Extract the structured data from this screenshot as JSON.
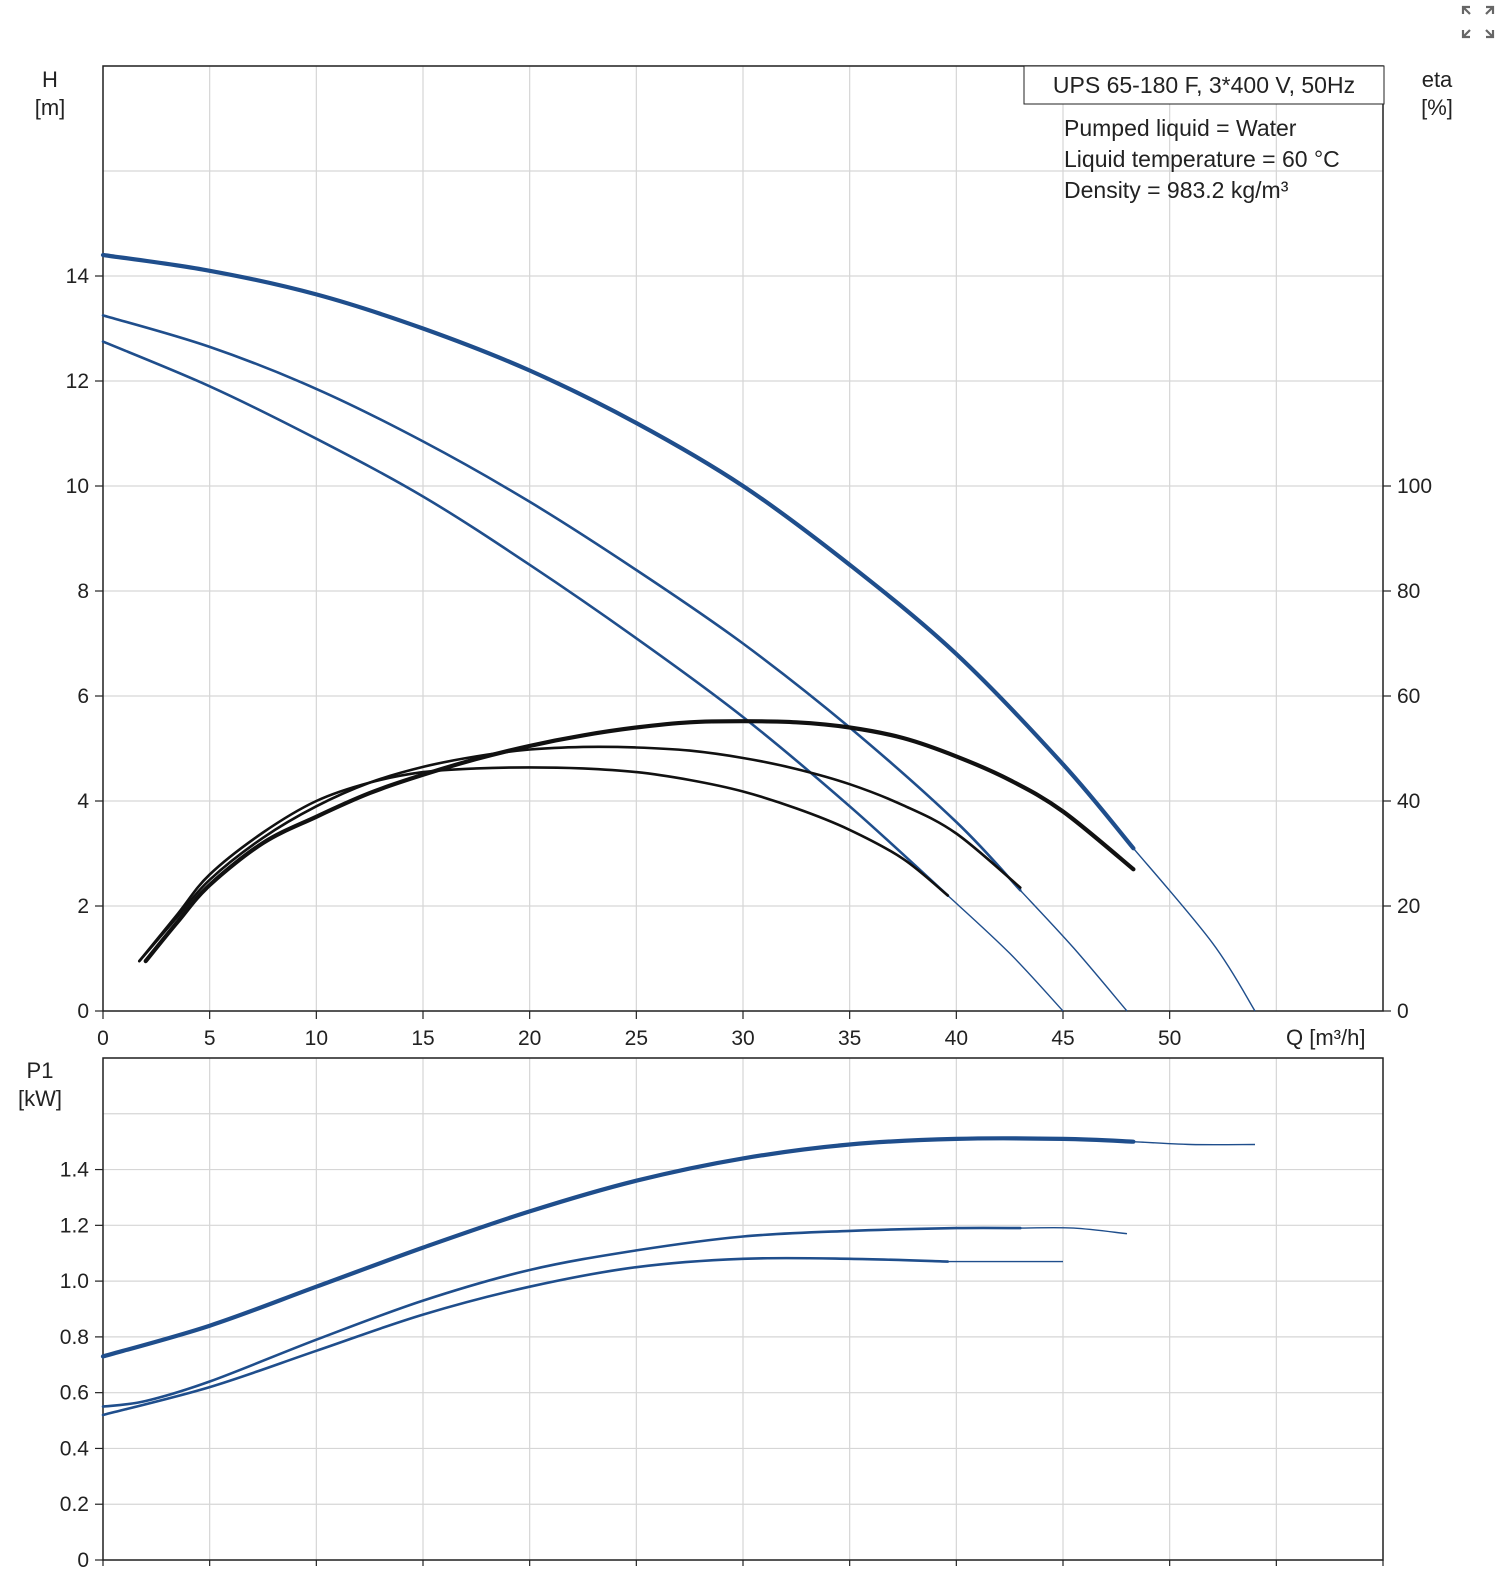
{
  "expand_button": {
    "icon": "expand-icon"
  },
  "chart_data": [
    {
      "type": "line",
      "title": "UPS 65-180 F, 3*400 V, 50Hz",
      "info": [
        "Pumped liquid = Water",
        "Liquid temperature = 60 °C",
        "Density = 983.2 kg/m³"
      ],
      "xlabel": "Q [m³/h]",
      "ylabel": "H",
      "ylabel_unit": "[m]",
      "y2label": "eta",
      "y2label_unit": "[%]",
      "xlim": [
        0,
        60
      ],
      "ylim": [
        0,
        18
      ],
      "y2lim": [
        0,
        180
      ],
      "xticks": [
        "0",
        "5",
        "10",
        "15",
        "20",
        "25",
        "30",
        "35",
        "40",
        "45",
        "50"
      ],
      "yticks": [
        "0",
        "2",
        "4",
        "6",
        "8",
        "10",
        "12",
        "14"
      ],
      "y2ticks": [
        "0",
        "20",
        "40",
        "60",
        "80",
        "100"
      ],
      "grid": true,
      "colors": {
        "head": "#1f4e8c",
        "efficiency": "#111111"
      },
      "series": [
        {
          "kind": "head",
          "axis": "left",
          "heavy": true,
          "x": [
            0,
            5,
            10,
            15,
            20,
            25,
            30,
            35,
            40,
            45,
            48.3
          ],
          "y": [
            14.4,
            14.1,
            13.65,
            13.0,
            12.2,
            11.2,
            10.0,
            8.5,
            6.8,
            4.7,
            3.1
          ],
          "ext_x": [
            48.3,
            52,
            54
          ],
          "ext_y": [
            3.1,
            1.3,
            0
          ]
        },
        {
          "kind": "head",
          "axis": "left",
          "heavy": false,
          "x": [
            0,
            5,
            10,
            15,
            20,
            25,
            30,
            35,
            40,
            43
          ],
          "y": [
            13.25,
            12.65,
            11.85,
            10.85,
            9.7,
            8.4,
            7.0,
            5.4,
            3.6,
            2.3
          ],
          "ext_x": [
            43,
            45.5,
            48
          ],
          "ext_y": [
            2.3,
            1.2,
            0
          ]
        },
        {
          "kind": "head",
          "axis": "left",
          "heavy": false,
          "x": [
            0,
            5,
            10,
            15,
            20,
            25,
            30,
            35,
            39.6
          ],
          "y": [
            12.75,
            11.9,
            10.9,
            9.8,
            8.5,
            7.1,
            5.6,
            3.9,
            2.2
          ],
          "ext_x": [
            39.6,
            42.5,
            45
          ],
          "ext_y": [
            2.2,
            1.1,
            0
          ]
        },
        {
          "kind": "efficiency",
          "axis": "right",
          "heavy": true,
          "x": [
            2,
            3.5,
            5,
            7.5,
            10,
            12.5,
            15,
            17.5,
            20,
            22.5,
            25,
            27.5,
            30,
            32.5,
            35,
            37.5,
            40,
            42.5,
            45,
            48.3
          ],
          "y": [
            9.5,
            17,
            24,
            32,
            37,
            41.5,
            45,
            48,
            50.5,
            52.5,
            54,
            55,
            55.2,
            55,
            54,
            52,
            48.5,
            44,
            38,
            27
          ],
          "ext_x": [],
          "ext_y": []
        },
        {
          "kind": "efficiency",
          "axis": "right",
          "heavy": false,
          "x": [
            1.7,
            3.5,
            5,
            7.5,
            10,
            12.5,
            15,
            17.5,
            20,
            22.5,
            25,
            27.5,
            30,
            32.5,
            35,
            37.5,
            40,
            43
          ],
          "y": [
            9.5,
            18,
            25,
            33,
            39,
            43.5,
            46.5,
            48.5,
            49.8,
            50.3,
            50.2,
            49.6,
            48.2,
            46.1,
            43.2,
            39.2,
            33.8,
            23.5
          ],
          "ext_x": [],
          "ext_y": []
        },
        {
          "kind": "efficiency",
          "axis": "right",
          "heavy": false,
          "x": [
            1.7,
            3.5,
            5,
            7.5,
            10,
            12.5,
            15,
            17.5,
            20,
            22.5,
            25,
            27.5,
            30,
            32.5,
            35,
            37.5,
            39.6
          ],
          "y": [
            9.5,
            18.5,
            26,
            34,
            40,
            43.5,
            45.5,
            46.2,
            46.4,
            46.2,
            45.5,
            44,
            41.8,
            38.6,
            34.5,
            29,
            22
          ],
          "ext_x": [],
          "ext_y": []
        }
      ]
    },
    {
      "type": "line",
      "title": "",
      "xlabel": "",
      "ylabel": "P1",
      "ylabel_unit": "[kW]",
      "xlim": [
        0,
        60
      ],
      "ylim": [
        0,
        1.8
      ],
      "yticks": [
        "0",
        "0.2",
        "0.4",
        "0.6",
        "0.8",
        "1.0",
        "1.2",
        "1.4"
      ],
      "grid": true,
      "colors": {
        "power": "#1f4e8c"
      },
      "series": [
        {
          "kind": "power",
          "heavy": true,
          "x": [
            0,
            5,
            10,
            15,
            20,
            25,
            30,
            35,
            40,
            45,
            48.3
          ],
          "y": [
            0.73,
            0.84,
            0.98,
            1.12,
            1.25,
            1.36,
            1.44,
            1.49,
            1.51,
            1.51,
            1.5
          ],
          "ext_x": [
            48.3,
            51,
            54
          ],
          "ext_y": [
            1.5,
            1.49,
            1.49
          ]
        },
        {
          "kind": "power",
          "heavy": false,
          "x": [
            0,
            2,
            5,
            10,
            15,
            20,
            25,
            30,
            35,
            40,
            43
          ],
          "y": [
            0.55,
            0.57,
            0.64,
            0.79,
            0.93,
            1.04,
            1.11,
            1.16,
            1.18,
            1.19,
            1.19
          ],
          "ext_x": [
            43,
            45.5,
            48
          ],
          "ext_y": [
            1.19,
            1.19,
            1.17
          ]
        },
        {
          "kind": "power",
          "heavy": false,
          "x": [
            0,
            5,
            10,
            15,
            20,
            25,
            30,
            35,
            39.6
          ],
          "y": [
            0.52,
            0.62,
            0.75,
            0.88,
            0.98,
            1.05,
            1.08,
            1.08,
            1.07
          ],
          "ext_x": [
            39.6,
            42.5,
            45
          ],
          "ext_y": [
            1.07,
            1.07,
            1.07
          ]
        }
      ]
    }
  ]
}
